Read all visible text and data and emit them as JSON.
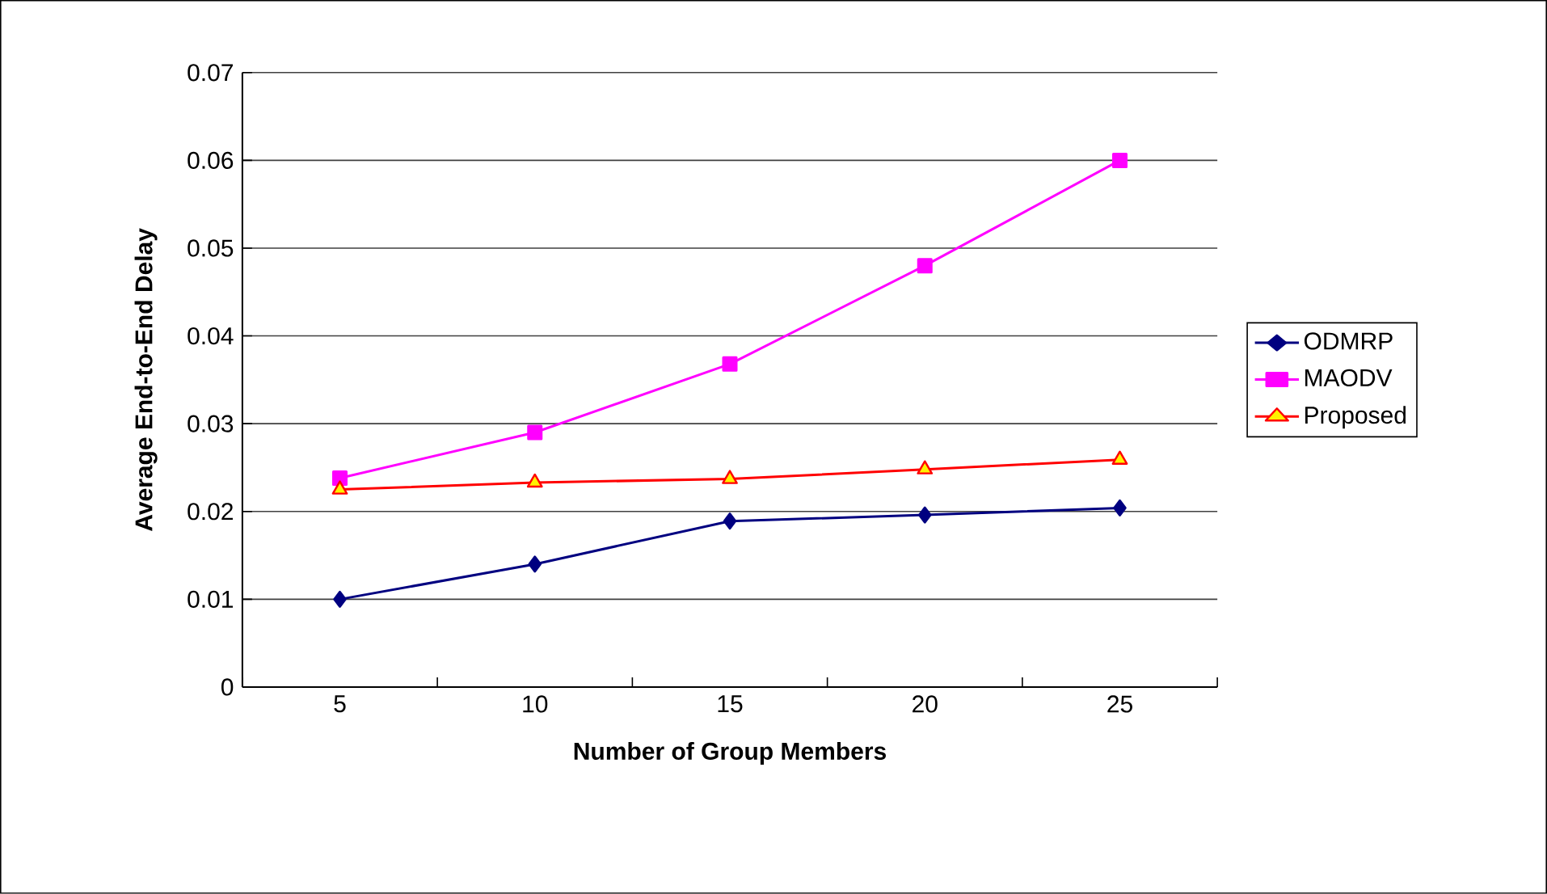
{
  "chart_data": {
    "type": "line",
    "xlabel": "Number of Group Members",
    "ylabel": "Average End-to-End Delay",
    "categories": [
      "5",
      "10",
      "15",
      "20",
      "25"
    ],
    "series": [
      {
        "name": "ODMRP",
        "color": "#000080",
        "marker": "diamond",
        "values": [
          0.01,
          0.014,
          0.0189,
          0.0196,
          0.0204
        ]
      },
      {
        "name": "MAODV",
        "color": "#ff00ff",
        "marker": "square",
        "values": [
          0.0238,
          0.029,
          0.0368,
          0.048,
          0.06
        ]
      },
      {
        "name": "Proposed",
        "color": "#ff0000",
        "marker": "triangle",
        "values": [
          0.0225,
          0.0233,
          0.0237,
          0.0248,
          0.0259
        ]
      }
    ],
    "ylim": [
      0,
      0.07
    ],
    "yticks": [
      0,
      0.01,
      0.02,
      0.03,
      0.04,
      0.05,
      0.06,
      0.07
    ],
    "grid": "y",
    "legend": "right"
  }
}
